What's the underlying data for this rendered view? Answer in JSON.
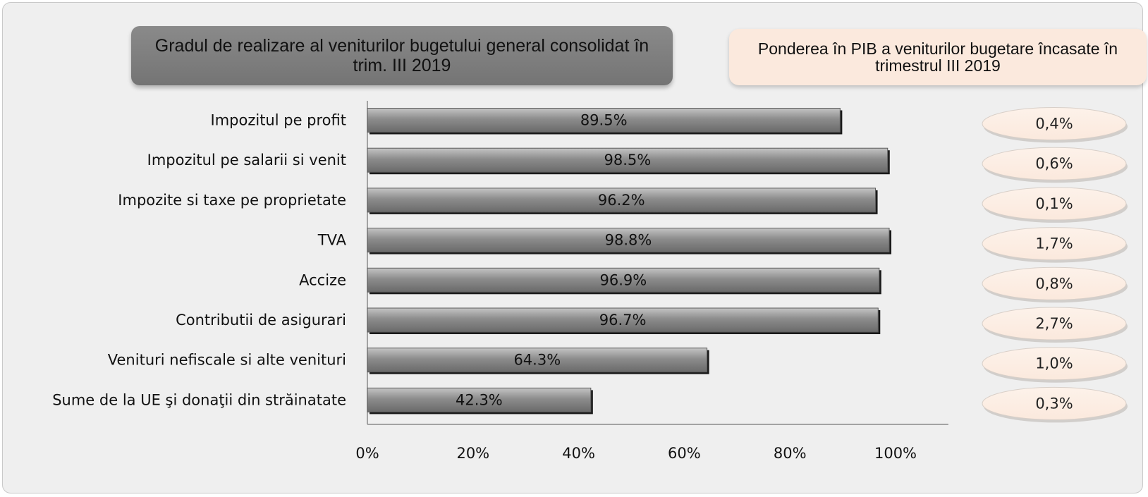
{
  "left_title": "Gradul de realizare al veniturilor bugetului general consolidat în trim. III 2019",
  "right_title": "Ponderea în PIB a veniturilor bugetare încasate în trimestrul III 2019",
  "colors": {
    "background": "#efefef",
    "left_title_bg": "#7f7f7f",
    "right_title_bg": "#fbe9dd",
    "bar_fill": "#8c8c8c",
    "bar_edge": "#1a1a1a",
    "ellipse_fill": "#fbe9dd"
  },
  "chart_data": {
    "type": "bar",
    "orientation": "horizontal",
    "title": "Gradul de realizare al veniturilor bugetului general consolidat în trim. III 2019",
    "categories": [
      "Impozitul pe profit",
      "Impozitul pe salarii si venit",
      "Impozite si taxe pe proprietate",
      "TVA",
      "Accize",
      "Contributii de asigurari",
      "Venituri nefiscale si alte venituri",
      "Sume de la UE şi donaţii din străinatate"
    ],
    "values": [
      89.5,
      98.5,
      96.2,
      98.8,
      96.9,
      96.7,
      64.3,
      42.3
    ],
    "value_labels": [
      "89.5%",
      "98.5%",
      "96.2%",
      "98.8%",
      "96.9%",
      "96.7%",
      "64.3%",
      "42.3%"
    ],
    "xlim": [
      0,
      110
    ],
    "xticks": [
      0,
      20,
      40,
      60,
      80,
      100
    ],
    "xtick_labels": [
      "0%",
      "20%",
      "40%",
      "60%",
      "80%",
      "100%"
    ],
    "grid": false,
    "side_series": {
      "title": "Ponderea în PIB a veniturilor bugetare încasate în trimestrul III 2019",
      "values": [
        0.4,
        0.6,
        0.1,
        1.7,
        0.8,
        2.7,
        1.0,
        0.3
      ],
      "labels": [
        "0,4%",
        "0,6%",
        "0,1%",
        "1,7%",
        "0,8%",
        "2,7%",
        "1,0%",
        "0,3%"
      ]
    }
  }
}
